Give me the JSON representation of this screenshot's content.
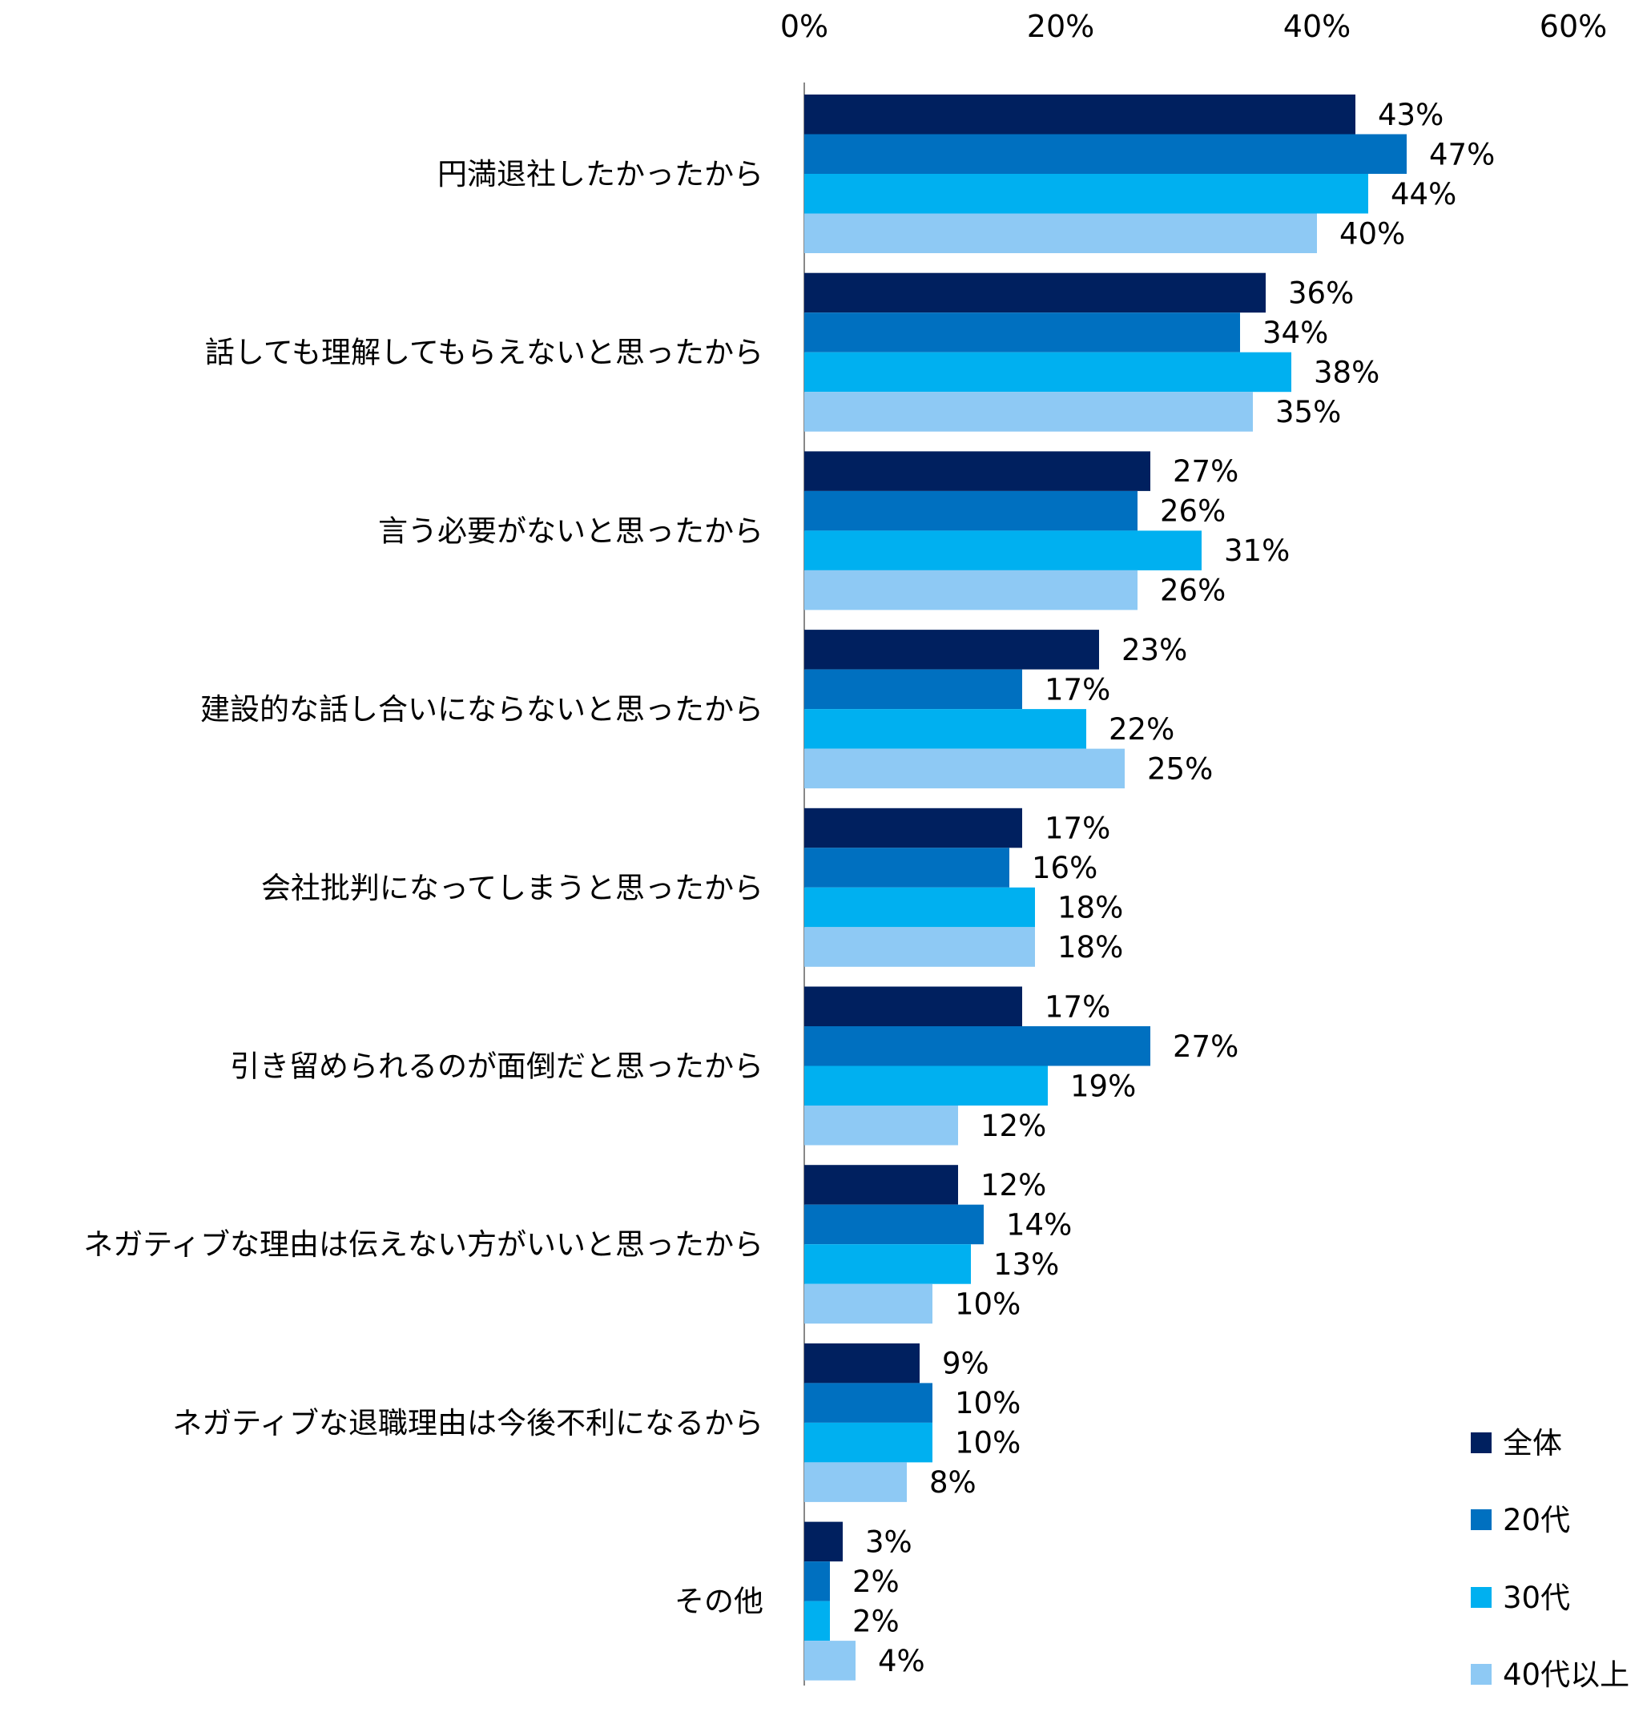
{
  "chart_data": {
    "type": "bar",
    "orientation": "horizontal",
    "categories": [
      "円満退社したかったから",
      "話しても理解してもらえないと思ったから",
      "言う必要がないと思ったから",
      "建設的な話し合いにならないと思ったから",
      "会社批判になってしまうと思ったから",
      "引き留められるのが面倒だと思ったから",
      "ネガティブな理由は伝えない方がいいと思ったから",
      "ネガティブな退職理由は今後不利になるから",
      "その他"
    ],
    "series": [
      {
        "name": "全体",
        "color": "#00205F",
        "values": [
          43,
          36,
          27,
          23,
          17,
          17,
          12,
          9,
          3
        ]
      },
      {
        "name": "20代",
        "color": "#0070C0",
        "values": [
          47,
          34,
          26,
          17,
          16,
          27,
          14,
          10,
          2
        ]
      },
      {
        "name": "30代",
        "color": "#00B0F0",
        "values": [
          44,
          38,
          31,
          22,
          18,
          19,
          13,
          10,
          2
        ]
      },
      {
        "name": "40代以上",
        "color": "#8EC9F4",
        "values": [
          40,
          35,
          26,
          25,
          18,
          12,
          10,
          8,
          4
        ]
      }
    ],
    "xlim": [
      0,
      60
    ],
    "xticks": [
      "0%",
      "20%",
      "40%",
      "60%"
    ],
    "xtick_values": [
      0,
      20,
      40,
      60
    ],
    "axis_position": "top",
    "value_suffix": "%",
    "grid": false,
    "legend_position": "bottom-right"
  }
}
